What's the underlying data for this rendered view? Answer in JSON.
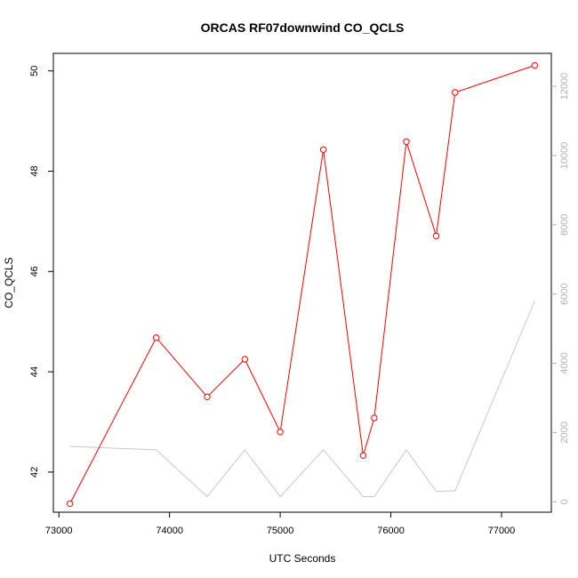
{
  "chart_data": {
    "type": "line",
    "title": "ORCAS RF07downwind CO_QCLS",
    "xlabel": "UTC Seconds",
    "ylabel": "CO_QCLS",
    "xlim": [
      72950,
      77450
    ],
    "ylim": [
      41.2,
      50.35
    ],
    "y2lim": [
      -300,
      12950
    ],
    "x_ticks": [
      73000,
      74000,
      75000,
      76000,
      77000
    ],
    "y_ticks": [
      42,
      44,
      46,
      48,
      50
    ],
    "y2_ticks": [
      0,
      2000,
      4000,
      6000,
      8000,
      10000,
      12000
    ],
    "series": [
      {
        "color": "#ff0000",
        "axis": "left",
        "markers": true,
        "x": [
          73100,
          73880,
          74340,
          74680,
          75000,
          75390,
          75750,
          75850,
          76140,
          76410,
          76580,
          77300
        ],
        "values": [
          41.37,
          44.68,
          43.5,
          44.25,
          42.8,
          48.43,
          42.33,
          43.08,
          48.59,
          46.71,
          49.57,
          50.11
        ]
      },
      {
        "color": "#c8c8c8",
        "axis": "right",
        "markers": false,
        "x": [
          73100,
          73880,
          74340,
          74680,
          75000,
          75390,
          75750,
          75850,
          76140,
          76410,
          76580,
          77300
        ],
        "values": [
          1600,
          1500,
          150,
          1500,
          150,
          1500,
          150,
          150,
          1500,
          300,
          320,
          5800
        ]
      }
    ]
  }
}
